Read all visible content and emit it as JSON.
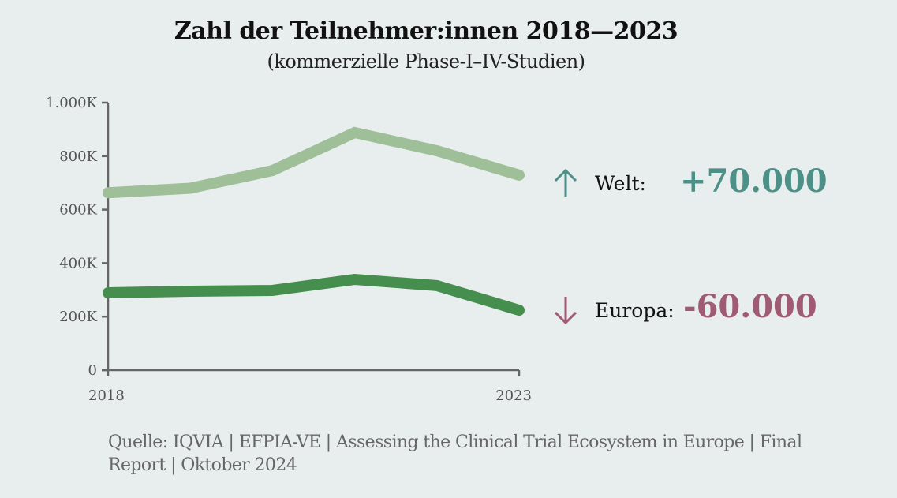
{
  "colors": {
    "welt_line": "#9ebf98",
    "europa_line": "#468e4e",
    "axis": "#666666",
    "welt_accent": "#4d9088",
    "europa_accent": "#a05a72",
    "background": "#e8eeed"
  },
  "chart_data": {
    "type": "line",
    "title": "Zahl der Teilnehmer:innen 2018—2023",
    "subtitle": "(kommerzielle Phase-I–IV-Studien)",
    "xlabel": "",
    "ylabel": "",
    "x": [
      2018,
      2019,
      2020,
      2021,
      2022,
      2023
    ],
    "x_tick_labels": [
      "2018",
      "2023"
    ],
    "y_ticks": [
      0,
      200,
      400,
      600,
      800,
      1000
    ],
    "y_tick_labels": [
      "0",
      "200K",
      "400K",
      "600K",
      "800K",
      "1.000K"
    ],
    "ylim": [
      0,
      1000
    ],
    "y_unit": "K",
    "grid": false,
    "series": [
      {
        "name": "Welt",
        "values": [
          663,
          680,
          746,
          888,
          820,
          729
        ]
      },
      {
        "name": "Europa",
        "values": [
          289,
          295,
          298,
          339,
          316,
          224
        ]
      }
    ],
    "annotations": [
      {
        "series": "Welt",
        "direction": "up",
        "label": "Welt:",
        "value": "+70.000"
      },
      {
        "series": "Europa",
        "direction": "down",
        "label": "Europa:",
        "value": "-60.000"
      }
    ]
  },
  "source": "Quelle: IQVIA | EFPIA-VE | Assessing the Clinical Trial Ecosystem in Europe | Final Report | Oktober 2024"
}
